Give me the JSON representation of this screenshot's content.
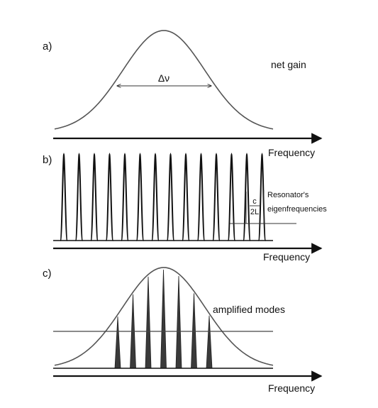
{
  "panels": {
    "a": {
      "label": "a)",
      "bandwidth_label": "Δν",
      "curve_label": "net gain",
      "axis_label": "Frequency"
    },
    "b": {
      "label": "b)",
      "spacing_numerator": "c",
      "spacing_denominator": "2L",
      "annotation_line1": "Resonator's",
      "annotation_line2": "eigenfrequencies",
      "axis_label": "Frequency",
      "mode_count": 14
    },
    "c": {
      "label": "c)",
      "curve_label": "amplified modes",
      "axis_label": "Frequency",
      "amplified_mode_count": 7
    }
  },
  "colors": {
    "curve": "#555555",
    "axis": "#111111",
    "mode_fill": "#3a3a3a"
  }
}
